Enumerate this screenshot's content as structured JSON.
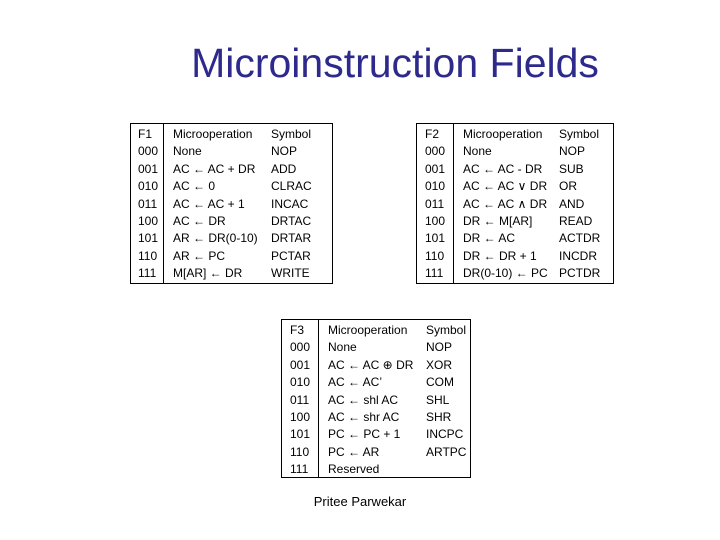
{
  "slide": {
    "title": "Microinstruction Fields",
    "footer": "Pritee Parwekar"
  },
  "tables": {
    "f1": {
      "headers": [
        "F1",
        "Microoperation",
        "Symbol"
      ],
      "rows": [
        [
          "000",
          "None",
          "NOP"
        ],
        [
          "001",
          "AC ← AC + DR",
          "ADD"
        ],
        [
          "010",
          "AC ← 0",
          "CLRAC"
        ],
        [
          "011",
          "AC ← AC + 1",
          "INCAC"
        ],
        [
          "100",
          "AC ← DR",
          "DRTAC"
        ],
        [
          "101",
          "AR ← DR(0-10)",
          "DRTAR"
        ],
        [
          "110",
          "AR ← PC",
          "PCTAR"
        ],
        [
          "111",
          "M[AR] ← DR",
          "WRITE"
        ]
      ]
    },
    "f2": {
      "headers": [
        "F2",
        "Microoperation",
        "Symbol"
      ],
      "rows": [
        [
          "000",
          "None",
          "NOP"
        ],
        [
          "001",
          "AC ← AC - DR",
          "SUB"
        ],
        [
          "010",
          "AC ← AC ∨ DR",
          "OR"
        ],
        [
          "011",
          "AC ← AC ∧ DR",
          "AND"
        ],
        [
          "100",
          "DR ← M[AR]",
          "READ"
        ],
        [
          "101",
          "DR ← AC",
          "ACTDR"
        ],
        [
          "110",
          "DR ← DR + 1",
          "INCDR"
        ],
        [
          "111",
          "DR(0-10) ← PC",
          "PCTDR"
        ]
      ]
    },
    "f3": {
      "headers": [
        "F3",
        "Microoperation",
        "Symbol"
      ],
      "rows": [
        [
          "000",
          "None",
          "NOP"
        ],
        [
          "001",
          "AC ← AC ⊕ DR",
          "XOR"
        ],
        [
          "010",
          "AC ← AC’",
          "COM"
        ],
        [
          "011",
          "AC ← shl AC",
          "SHL"
        ],
        [
          "100",
          "AC ← shr AC",
          "SHR"
        ],
        [
          "101",
          "PC ← PC + 1",
          "INCPC"
        ],
        [
          "110",
          "PC ← AR",
          "ARTPC"
        ],
        [
          "111",
          "Reserved",
          ""
        ]
      ]
    }
  }
}
